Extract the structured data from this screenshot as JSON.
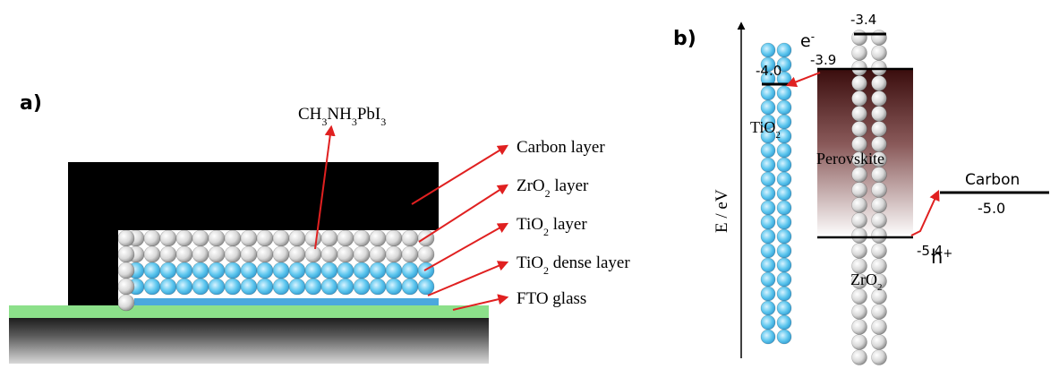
{
  "panel_a": {
    "label": "a)",
    "compound_label": "CH3NH3PbI3",
    "layers": [
      {
        "id": "carbon",
        "label": "Carbon layer",
        "color": "#000000"
      },
      {
        "id": "zro2",
        "label": "ZrO2 layer",
        "color": "#d6d6d6"
      },
      {
        "id": "tio2",
        "label": "TiO2 layer",
        "color": "#66c8ee"
      },
      {
        "id": "tio2-dense",
        "label": "TiO2 dense layer",
        "color": "#4aa8dd"
      },
      {
        "id": "fto",
        "label": "FTO glass",
        "color": "#8ce08a"
      }
    ]
  },
  "panel_b": {
    "label": "b)",
    "y_axis_label": "E / eV",
    "electron_label": "e-",
    "hole_label": "h+",
    "tio2_label": "TiO2",
    "perovskite_label": "Perovskite",
    "zro2_label": "ZrO2",
    "carbon_label": "Carbon",
    "levels": {
      "zro2_cb": "-3.4",
      "perovskite_cb": "-3.9",
      "tio2_cb": "-4.0",
      "carbon_wf": "-5.0",
      "perovskite_vb": "-5.4"
    }
  },
  "colors": {
    "arrow": "#e02020",
    "tio2_sphere": "#5cc6ee",
    "zro2_sphere": "#cfcfcf",
    "perovskite_top": "#3a0d0d",
    "perovskite_bottom": "#ffffff"
  }
}
